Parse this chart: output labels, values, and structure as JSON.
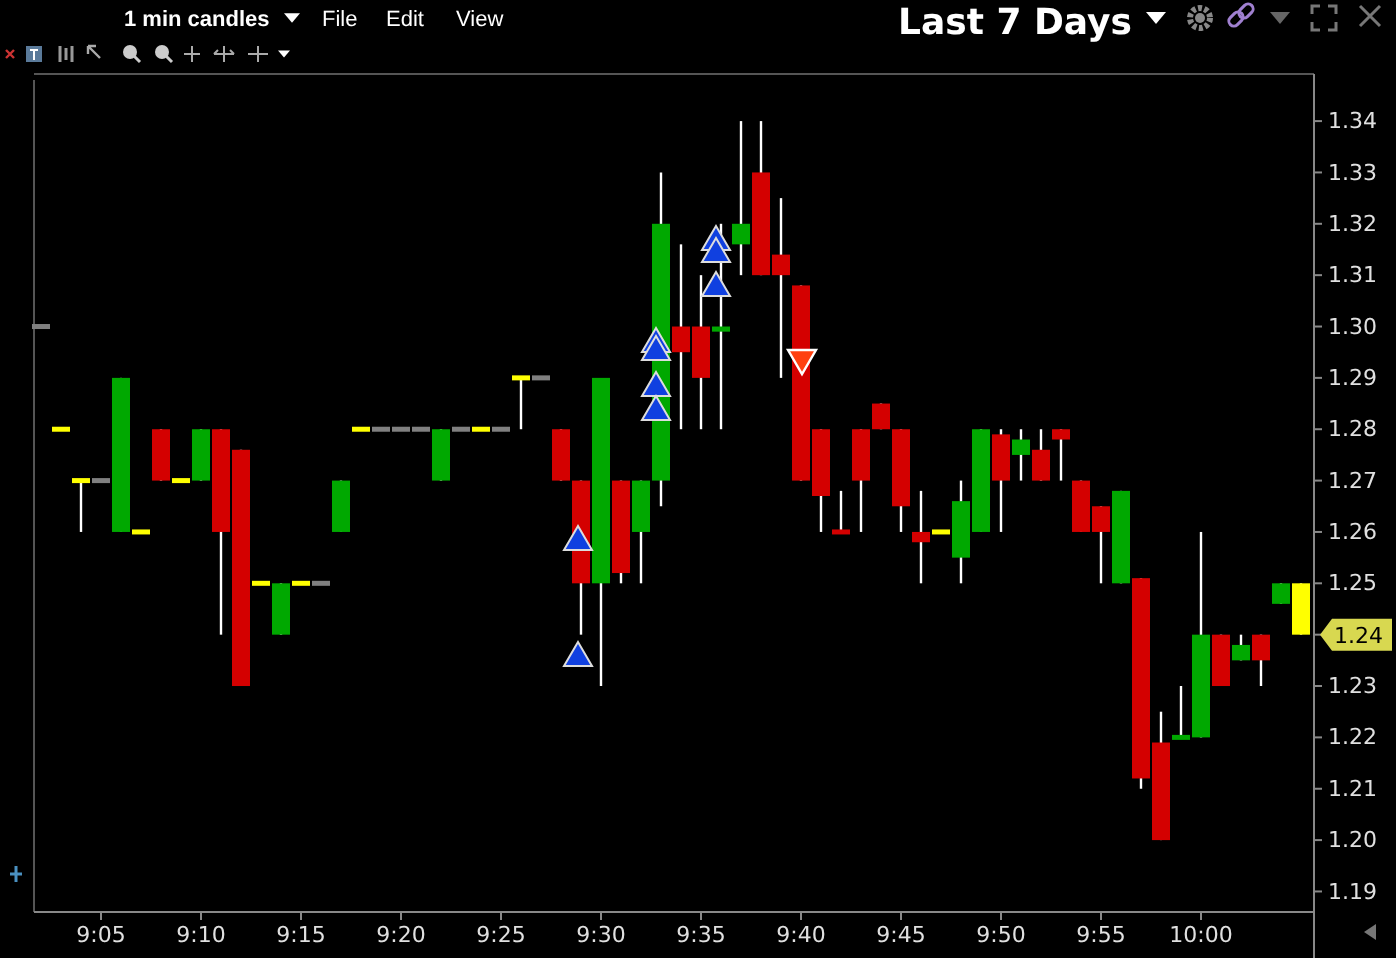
{
  "chart_data": {
    "type": "candlestick",
    "title": "Last 7 Days",
    "annotations": [
      "1 min candles",
      "File",
      "Edit",
      "View",
      "1.24"
    ],
    "categories": [
      null,
      null,
      null,
      "9:05",
      null,
      null,
      null,
      null,
      "9:10",
      null,
      null,
      null,
      null,
      "9:15",
      null,
      null,
      null,
      null,
      "9:20",
      null,
      null,
      null,
      null,
      "9:25",
      null,
      null,
      null,
      null,
      "9:30",
      null,
      null,
      null,
      null,
      "9:35",
      null,
      null,
      null,
      null,
      "9:40",
      null,
      null,
      null,
      null,
      "9:45",
      null,
      null,
      null,
      null,
      "9:50",
      null,
      null,
      null,
      null,
      "9:55",
      null,
      null,
      null,
      null,
      "10:00",
      null,
      null,
      null,
      null,
      null
    ],
    "ohlc": [
      [
        1.3,
        1.3,
        1.3,
        1.3
      ],
      [
        1.28,
        1.28,
        1.28,
        1.28
      ],
      [
        1.27,
        1.27,
        1.26,
        1.27
      ],
      [
        1.27,
        1.27,
        1.27,
        1.27
      ],
      [
        1.26,
        1.29,
        1.26,
        1.29
      ],
      [
        1.26,
        1.26,
        1.26,
        1.26
      ],
      [
        1.28,
        1.28,
        1.27,
        1.27
      ],
      [
        1.27,
        1.27,
        1.27,
        1.27
      ],
      [
        1.27,
        1.28,
        1.27,
        1.28
      ],
      [
        1.28,
        1.28,
        1.24,
        1.26
      ],
      [
        1.276,
        1.276,
        1.23,
        1.23
      ],
      [
        1.25,
        1.25,
        1.25,
        1.25
      ],
      [
        1.24,
        1.25,
        1.24,
        1.25
      ],
      [
        1.25,
        1.25,
        1.25,
        1.25
      ],
      [
        1.25,
        1.25,
        1.25,
        1.25
      ],
      [
        1.26,
        1.27,
        1.26,
        1.27
      ],
      [
        1.28,
        1.28,
        1.28,
        1.28
      ],
      [
        1.28,
        1.28,
        1.28,
        1.28
      ],
      [
        1.28,
        1.28,
        1.28,
        1.28
      ],
      [
        1.28,
        1.28,
        1.28,
        1.28
      ],
      [
        1.27,
        1.28,
        1.27,
        1.28
      ],
      [
        1.28,
        1.28,
        1.28,
        1.28
      ],
      [
        1.28,
        1.28,
        1.28,
        1.28
      ],
      [
        1.28,
        1.28,
        1.28,
        1.28
      ],
      [
        1.29,
        1.29,
        1.28,
        1.29
      ],
      [
        1.29,
        1.29,
        1.29,
        1.29
      ],
      [
        1.28,
        1.28,
        1.27,
        1.27
      ],
      [
        1.27,
        1.27,
        1.24,
        1.25
      ],
      [
        1.25,
        1.29,
        1.23,
        1.29
      ],
      [
        1.27,
        1.27,
        1.25,
        1.252
      ],
      [
        1.26,
        1.27,
        1.25,
        1.27
      ],
      [
        1.27,
        1.33,
        1.265,
        1.32
      ],
      [
        1.3,
        1.316,
        1.28,
        1.295
      ],
      [
        1.3,
        1.31,
        1.28,
        1.29
      ],
      [
        1.299,
        1.32,
        1.28,
        1.3
      ],
      [
        1.316,
        1.34,
        1.31,
        1.32
      ],
      [
        1.33,
        1.34,
        1.31,
        1.31
      ],
      [
        1.314,
        1.325,
        1.29,
        1.31
      ],
      [
        1.308,
        1.308,
        1.27,
        1.27
      ],
      [
        1.28,
        1.28,
        1.26,
        1.267
      ],
      [
        1.26,
        1.268,
        1.26,
        1.26
      ],
      [
        1.28,
        1.28,
        1.26,
        1.27
      ],
      [
        1.285,
        1.285,
        1.28,
        1.28
      ],
      [
        1.28,
        1.28,
        1.26,
        1.265
      ],
      [
        1.26,
        1.268,
        1.25,
        1.258
      ],
      [
        1.26,
        1.26,
        1.26,
        1.26
      ],
      [
        1.255,
        1.27,
        1.25,
        1.266
      ],
      [
        1.26,
        1.28,
        1.26,
        1.28
      ],
      [
        1.279,
        1.28,
        1.26,
        1.27
      ],
      [
        1.275,
        1.28,
        1.27,
        1.278
      ],
      [
        1.276,
        1.28,
        1.27,
        1.27
      ],
      [
        1.28,
        1.28,
        1.27,
        1.278
      ],
      [
        1.27,
        1.27,
        1.26,
        1.26
      ],
      [
        1.265,
        1.265,
        1.25,
        1.26
      ],
      [
        1.25,
        1.268,
        1.25,
        1.268
      ],
      [
        1.251,
        1.251,
        1.21,
        1.212
      ],
      [
        1.219,
        1.225,
        1.2,
        1.2
      ],
      [
        1.22,
        1.23,
        1.22,
        1.22
      ],
      [
        1.22,
        1.26,
        1.22,
        1.24
      ],
      [
        1.24,
        1.24,
        1.23,
        1.23
      ],
      [
        1.235,
        1.24,
        1.235,
        1.238
      ],
      [
        1.24,
        1.24,
        1.23,
        1.235
      ],
      [
        1.246,
        1.25,
        1.246,
        1.25
      ],
      [
        1.25,
        1.25,
        1.24,
        1.24
      ]
    ],
    "colors": [
      "#808080",
      "#ffff00",
      "#ffff00",
      "#808080",
      "#00a800",
      "#ffff00",
      "#d40000",
      "#ffff00",
      "#00a800",
      "#d40000",
      "#d40000",
      "#ffff00",
      "#00a800",
      "#ffff00",
      "#808080",
      "#00a800",
      "#ffff00",
      "#808080",
      "#808080",
      "#808080",
      "#00a800",
      "#808080",
      "#ffff00",
      "#808080",
      "#ffff00",
      "#808080",
      "#d40000",
      "#d40000",
      "#00a800",
      "#d40000",
      "#00a800",
      "#00a800",
      "#d40000",
      "#d40000",
      "#00a800",
      "#00a800",
      "#d40000",
      "#d40000",
      "#d40000",
      "#d40000",
      "#d40000",
      "#d40000",
      "#d40000",
      "#d40000",
      "#d40000",
      "#ffff00",
      "#00a800",
      "#00a800",
      "#d40000",
      "#00a800",
      "#d40000",
      "#d40000",
      "#d40000",
      "#d40000",
      "#00a800",
      "#d40000",
      "#d40000",
      "#00a800",
      "#00a800",
      "#d40000",
      "#00a800",
      "#d40000",
      "#00a800",
      "#ffff00"
    ],
    "ylim": [
      1.186,
      1.348
    ],
    "yticks": [
      1.19,
      {
        "value": 1.2,
        "label": "1.20"
      },
      1.21,
      1.22,
      1.23,
      1.24,
      1.25,
      1.26,
      1.27,
      1.28,
      1.29,
      {
        "value": 1.3,
        "label": "1.30"
      },
      1.31,
      1.32,
      1.33,
      1.34
    ]
  }
}
